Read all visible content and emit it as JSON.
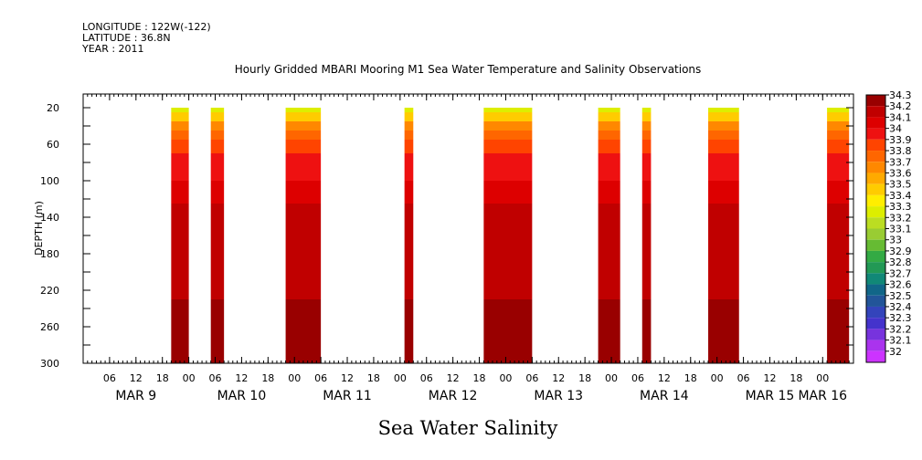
{
  "meta": {
    "longitude": "LONGITUDE : 122W(-122)",
    "latitude": "LATITUDE : 36.8N",
    "year": "YEAR : 2011"
  },
  "chart_data": {
    "type": "heatmap",
    "title": "Hourly Gridded MBARI Mooring M1 Sea Water Temperature and Salinity Observations",
    "caption": "Sea Water Salinity",
    "ylabel": "DEPTH (m)",
    "y_axis": {
      "ylim": [
        300,
        5
      ],
      "inverted": true,
      "ticks": [
        20,
        60,
        100,
        140,
        180,
        220,
        260,
        300
      ]
    },
    "x_axis": {
      "range_hours": [
        0,
        168
      ],
      "start": "2011-03-09T00:00 (hour 0)",
      "tick_labels": [
        "06",
        "12",
        "18",
        "00",
        "06",
        "12",
        "18",
        "00",
        "06",
        "12",
        "18",
        "00",
        "06",
        "12",
        "18",
        "00",
        "06",
        "12",
        "18",
        "00",
        "06",
        "12",
        "18",
        "00",
        "06",
        "12",
        "18",
        "00"
      ],
      "tick_hours": [
        6,
        12,
        18,
        24,
        30,
        36,
        42,
        48,
        54,
        60,
        66,
        72,
        78,
        84,
        90,
        96,
        102,
        108,
        114,
        120,
        126,
        132,
        138,
        144,
        150,
        156,
        162,
        168
      ],
      "day_labels": [
        "MAR  9",
        "MAR 10",
        "MAR 11",
        "MAR 12",
        "MAR 13",
        "MAR 14",
        "MAR 15",
        "MAR 16"
      ],
      "day_label_hours": [
        12,
        36,
        60,
        84,
        108,
        132,
        156,
        168
      ]
    },
    "data_segments_hours": [
      [
        20,
        24
      ],
      [
        29,
        32
      ],
      [
        46,
        54
      ],
      [
        73,
        75
      ],
      [
        91,
        102
      ],
      [
        117,
        122
      ],
      [
        127,
        129
      ],
      [
        142,
        149
      ],
      [
        169,
        174
      ]
    ],
    "depth_profile": [
      {
        "from": 20,
        "to": 25,
        "value": 33.3
      },
      {
        "from": 25,
        "to": 35,
        "value": 33.5
      },
      {
        "from": 35,
        "to": 45,
        "value": 33.7
      },
      {
        "from": 45,
        "to": 55,
        "value": 33.8
      },
      {
        "from": 55,
        "to": 70,
        "value": 33.9
      },
      {
        "from": 70,
        "to": 100,
        "value": 34.0
      },
      {
        "from": 100,
        "to": 125,
        "value": 34.1
      },
      {
        "from": 125,
        "to": 230,
        "value": 34.2
      },
      {
        "from": 230,
        "to": 300,
        "value": 34.3
      }
    ],
    "colorbar": {
      "levels": [
        "34.3",
        "34.2",
        "34.1",
        "34",
        "33.9",
        "33.8",
        "33.7",
        "33.6",
        "33.5",
        "33.4",
        "33.3",
        "33.2",
        "33.1",
        "33",
        "32.9",
        "32.8",
        "32.7",
        "32.6",
        "32.5",
        "32.4",
        "32.3",
        "32.2",
        "32.1",
        "32"
      ],
      "colors": [
        "#990000",
        "#c00000",
        "#dd0000",
        "#ee1111",
        "#ff4400",
        "#ff6600",
        "#ff8800",
        "#ffaa00",
        "#ffcc00",
        "#ffee00",
        "#ddee00",
        "#bbdd22",
        "#99cc33",
        "#66bb33",
        "#33aa44",
        "#229955",
        "#118877",
        "#116688",
        "#225599",
        "#3344bb",
        "#4433cc",
        "#7733dd",
        "#aa33ee",
        "#cc33ff"
      ]
    }
  }
}
